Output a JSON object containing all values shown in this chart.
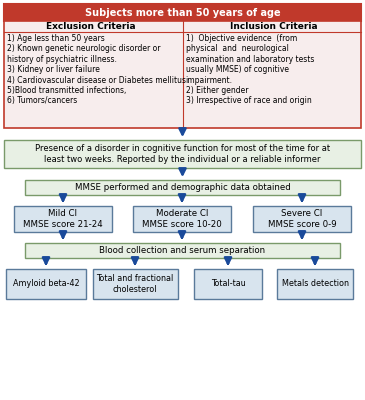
{
  "title": "Subjects more than 50 years of age",
  "title_bg": "#c0392b",
  "title_fg": "#ffffff",
  "exclusion_header": "Exclusion Criteria",
  "inclusion_header": "Inclusion Criteria",
  "exclusion_items": "1) Age less than 50 years\n2) Known genetic neurologic disorder or\nhistory of psychiatric illness.\n3) Kidney or liver failure\n4) Cardiovascular disease or Diabetes mellitus\n5)Blood transmitted infections,\n6) Tumors/cancers",
  "inclusion_items": "1)  Objective evidence  (from\nphysical  and  neurological\nexamination and laboratory tests\nusually MMSE) of cognitive\nimpairment.\n2) Either gender\n3) Irrespective of race and origin",
  "criteria_bg": "#f7eded",
  "criteria_border": "#c0392b",
  "box2_text": "Presence of a disorder in cognitive function for most of the time for at\nleast two weeks. Reported by the individual or a reliable informer",
  "box2_bg": "#e8f0e4",
  "box2_border": "#7a9a6a",
  "box3_text": "MMSE performed and demographic data obtained",
  "box3_bg": "#e8f0e4",
  "box3_border": "#7a9a6a",
  "ci_boxes": [
    {
      "text": "Mild CI\nMMSE score 21-24",
      "bg": "#d8e4ee",
      "border": "#5a7a9a"
    },
    {
      "text": "Moderate CI\nMMSE score 10-20",
      "bg": "#d8e4ee",
      "border": "#5a7a9a"
    },
    {
      "text": "Severe CI\nMMSE score 0-9",
      "bg": "#d8e4ee",
      "border": "#5a7a9a"
    }
  ],
  "box4_text": "Blood collection and serum separation",
  "box4_bg": "#e8f0e4",
  "box4_border": "#7a9a6a",
  "final_boxes": [
    {
      "text": "Amyloid beta-42",
      "bg": "#d8e4ee",
      "border": "#5a7a9a"
    },
    {
      "text": "Total and fractional\ncholesterol",
      "bg": "#d8e4ee",
      "border": "#5a7a9a"
    },
    {
      "text": "Total-tau",
      "bg": "#d8e4ee",
      "border": "#5a7a9a"
    },
    {
      "text": "Metals detection",
      "bg": "#d8e4ee",
      "border": "#5a7a9a"
    }
  ],
  "arrow_color": "#1a4a9a",
  "bg_color": "#ffffff",
  "fig_w": 3.65,
  "fig_h": 4.0,
  "dpi": 100
}
